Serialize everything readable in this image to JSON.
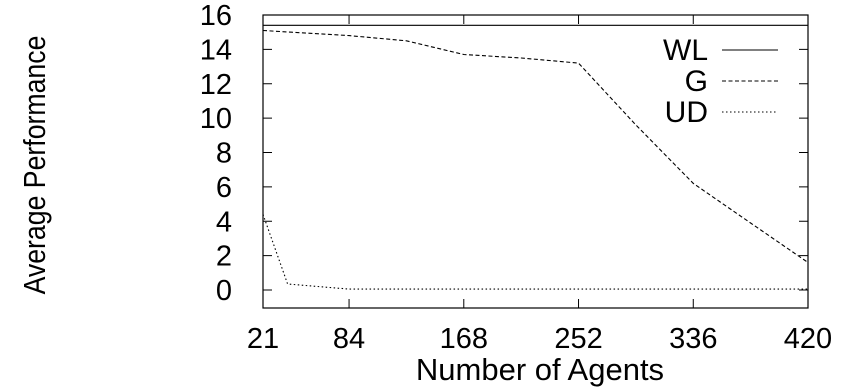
{
  "chart_data": {
    "type": "line",
    "title": "",
    "xlabel": "Number of Agents",
    "ylabel": "Average Performance",
    "xlim": [
      21,
      420
    ],
    "ylim": [
      0,
      16
    ],
    "x_ticks": [
      21,
      84,
      168,
      252,
      336,
      420
    ],
    "y_ticks": [
      0,
      2,
      4,
      6,
      8,
      10,
      12,
      14,
      16
    ],
    "grid": false,
    "legend": "top-right",
    "series": [
      {
        "name": "WL",
        "dash": "solid",
        "x": [
          21,
          420
        ],
        "y": [
          15.4,
          15.4
        ]
      },
      {
        "name": "G",
        "dash": "dashed",
        "x": [
          21,
          42,
          84,
          126,
          168,
          210,
          252,
          294,
          336,
          378,
          420
        ],
        "y": [
          15.1,
          15.0,
          14.8,
          14.5,
          13.7,
          13.5,
          13.2,
          9.6,
          6.2,
          3.9,
          1.6
        ]
      },
      {
        "name": "UD",
        "dash": "dotted",
        "x": [
          21,
          39,
          84,
          126,
          168,
          210,
          252,
          294,
          336,
          378,
          420
        ],
        "y": [
          4.4,
          0.35,
          0.05,
          0.05,
          0.05,
          0.05,
          0.05,
          0.05,
          0.05,
          0.05,
          0.05
        ]
      }
    ]
  }
}
